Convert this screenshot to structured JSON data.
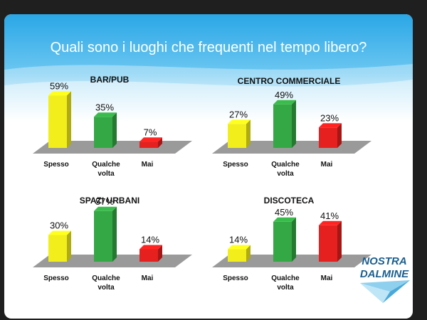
{
  "title": "Quali sono i luoghi che frequenti nel tempo libero?",
  "logo": {
    "line1": "NOSTRA",
    "line2": "DALMINE"
  },
  "colors": {
    "yellow": "#f2ee1c",
    "green": "#34a844",
    "red": "#e5201e",
    "floor": "#9a9a9a",
    "header_top": "#2aa7e6",
    "header_bottom": "#e8f6fd"
  },
  "chart_data": [
    {
      "type": "bar",
      "title": "BAR/PUB",
      "categories": [
        "Spesso",
        "Qualche volta",
        "Mai"
      ],
      "values": [
        59,
        35,
        7
      ],
      "value_labels": [
        "59%",
        "35%",
        "7%"
      ],
      "colors": [
        "yellow",
        "green",
        "red"
      ],
      "ylim": [
        0,
        60
      ]
    },
    {
      "type": "bar",
      "title": "CENTRO COMMERCIALE",
      "categories": [
        "Spesso",
        "Qualche volta",
        "Mai"
      ],
      "values": [
        27,
        49,
        23
      ],
      "value_labels": [
        "27%",
        "49%",
        "23%"
      ],
      "colors": [
        "yellow",
        "green",
        "red"
      ],
      "ylim": [
        0,
        60
      ]
    },
    {
      "type": "bar",
      "title": "SPAZI URBANI",
      "categories": [
        "Spesso",
        "Qualche volta",
        "Mai"
      ],
      "values": [
        30,
        57,
        14
      ],
      "value_labels": [
        "30%",
        "57%",
        "14%"
      ],
      "colors": [
        "yellow",
        "green",
        "red"
      ],
      "ylim": [
        0,
        60
      ]
    },
    {
      "type": "bar",
      "title": "DISCOTECA",
      "categories": [
        "Spesso",
        "Qualche volta",
        "Mai"
      ],
      "values": [
        14,
        45,
        41
      ],
      "value_labels": [
        "14%",
        "45%",
        "41%"
      ],
      "colors": [
        "yellow",
        "green",
        "red"
      ],
      "ylim": [
        0,
        60
      ]
    }
  ]
}
